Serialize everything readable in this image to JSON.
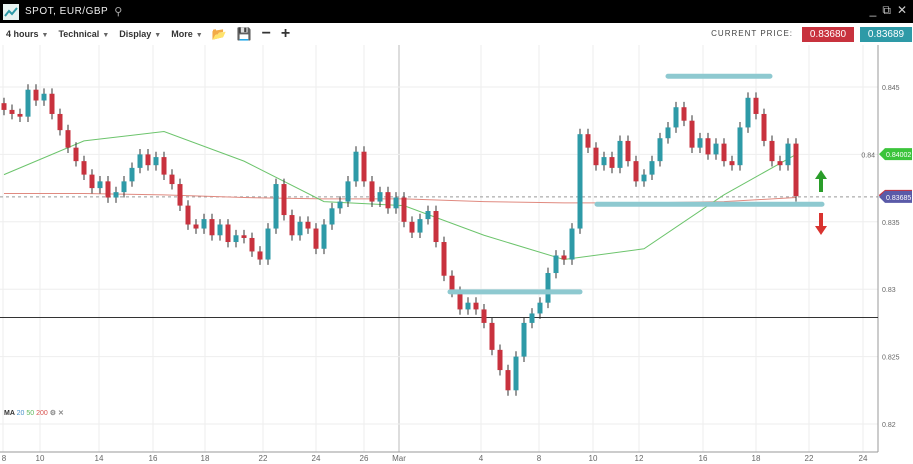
{
  "window": {
    "title": "SPOT, EUR/GBP",
    "search_icon": "search-icon",
    "controls": [
      "minimize-icon",
      "popout-icon",
      "close-icon"
    ]
  },
  "toolbar": {
    "timeframe": "4 hours",
    "technical": "Technical",
    "display": "Display",
    "more": "More",
    "icons": [
      "folder-open-icon",
      "save-icon",
      "zoom-out-icon",
      "zoom-in-icon"
    ]
  },
  "price": {
    "label": "CURRENT PRICE:",
    "sell": "0.83680",
    "buy": "0.83689",
    "sell_color": "#c8323e",
    "buy_color": "#2e9aa7"
  },
  "indicator": {
    "name": "MA",
    "periods": [
      "20",
      "50",
      "200"
    ],
    "colors": [
      "#4a90c8",
      "#5cb85c",
      "#d9534f"
    ]
  },
  "chart_data": {
    "type": "candlestick",
    "symbol": "EUR/GBP",
    "ylim": [
      0.8185,
      0.848
    ],
    "y_ticks": [
      "0.845",
      "0.84",
      "0.835",
      "0.83",
      "0.825",
      "0.82"
    ],
    "x_ticks": [
      "8",
      "10",
      "14",
      "16",
      "18",
      "22",
      "24",
      "26",
      "Mar",
      "4",
      "8",
      "10",
      "12",
      "16",
      "18",
      "22",
      "24"
    ],
    "first_open": 0.8438,
    "closes": [
      0.8433,
      0.843,
      0.8428,
      0.8448,
      0.844,
      0.8445,
      0.843,
      0.8418,
      0.8405,
      0.8395,
      0.8385,
      0.8375,
      0.838,
      0.8368,
      0.8372,
      0.838,
      0.839,
      0.84,
      0.8392,
      0.8398,
      0.8385,
      0.8378,
      0.8362,
      0.8348,
      0.8345,
      0.8352,
      0.834,
      0.8348,
      0.8335,
      0.834,
      0.8338,
      0.8328,
      0.8322,
      0.8345,
      0.8378,
      0.8355,
      0.834,
      0.835,
      0.8345,
      0.833,
      0.8348,
      0.836,
      0.8365,
      0.838,
      0.8402,
      0.838,
      0.8365,
      0.8372,
      0.836,
      0.8368,
      0.835,
      0.8342,
      0.8352,
      0.8358,
      0.8335,
      0.831,
      0.8298,
      0.8285,
      0.829,
      0.8285,
      0.8275,
      0.8255,
      0.824,
      0.8225,
      0.825,
      0.8275,
      0.8282,
      0.829,
      0.8312,
      0.8325,
      0.8322,
      0.8345,
      0.8415,
      0.8405,
      0.8392,
      0.8398,
      0.839,
      0.841,
      0.8395,
      0.838,
      0.8385,
      0.8395,
      0.8412,
      0.842,
      0.8435,
      0.8425,
      0.8405,
      0.8412,
      0.84,
      0.8408,
      0.8395,
      0.8392,
      0.842,
      0.8442,
      0.843,
      0.841,
      0.8395,
      0.8392,
      0.8408,
      0.8369
    ],
    "ma50": [
      0.8385,
      0.841,
      0.8417,
      0.8395,
      0.8365,
      0.8362,
      0.834,
      0.8322,
      0.833,
      0.837,
      0.84
    ],
    "ma200": [
      0.8371,
      0.8371,
      0.837,
      0.8368,
      0.8367,
      0.8367,
      0.8365,
      0.8364,
      0.8364,
      0.8365,
      0.8368
    ],
    "levels": {
      "resistance": 0.8458,
      "support_upper": 0.8363,
      "support_lower": 0.8298,
      "horizontal_line": 0.8279,
      "current": 0.83685
    },
    "tags": {
      "ma50": "0.84002",
      "current": "0.83685"
    },
    "colors": {
      "up": "#2e9aa7",
      "down": "#c8323e",
      "ma50": "#6cc46c",
      "ma200": "#e08a80",
      "level": "#8ec9d0"
    }
  }
}
